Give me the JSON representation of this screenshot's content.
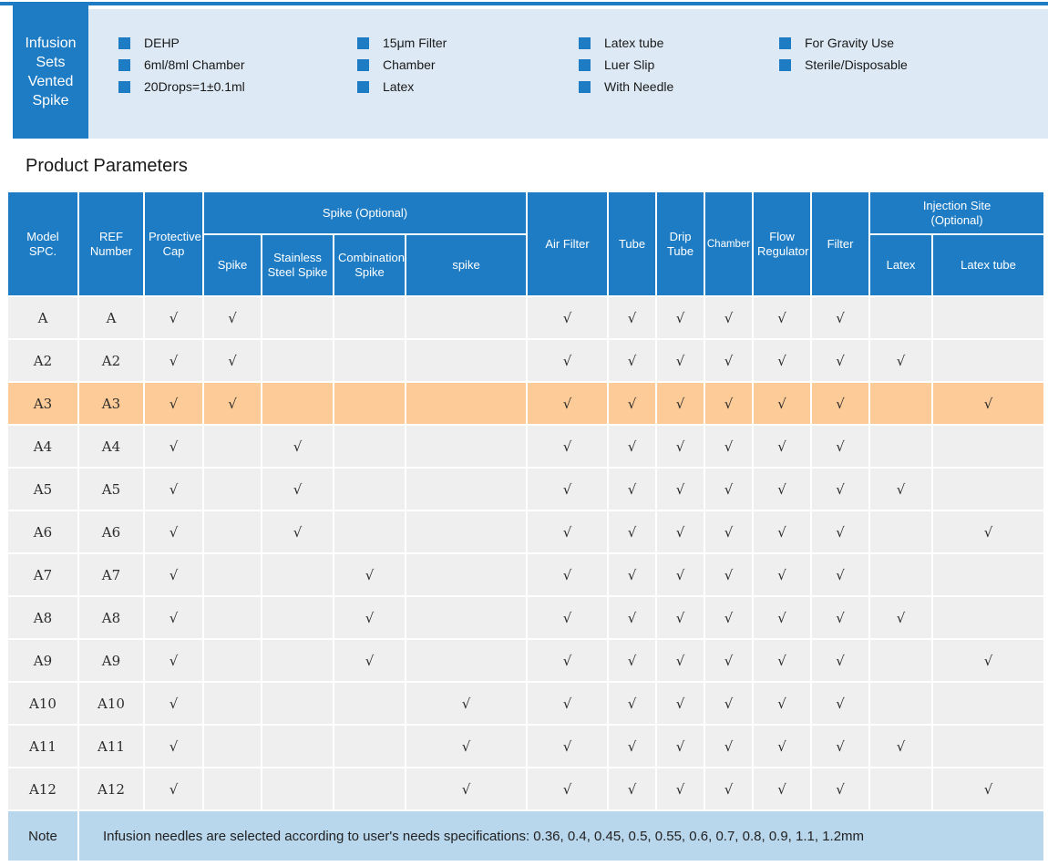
{
  "banner": {
    "title": "Infusion Sets Vented Spike",
    "feature_columns": [
      {
        "items": [
          "DEHP",
          "6ml/8ml Chamber",
          "20Drops=1±0.1ml"
        ]
      },
      {
        "items": [
          "15μm Filter",
          "Chamber",
          "Latex"
        ]
      },
      {
        "items": [
          "Latex tube",
          "Luer Slip",
          "With Needle"
        ]
      },
      {
        "items": [
          "For Gravity Use",
          "Sterile/Disposable"
        ]
      }
    ]
  },
  "section": {
    "title": "Product Parameters"
  },
  "table": {
    "group_headers": {
      "spike": "Spike（Optional）",
      "injection": "Injection Site（Optional）"
    },
    "columns": [
      "Model SPC.",
      "REF Number",
      "Protective Cap",
      "Spike",
      "Stainless Steel Spike",
      "Combination Spike",
      "spike",
      "Air Filter",
      "Tube",
      "Drip Tube",
      "Chamber",
      "Flow Regulator",
      "Filter",
      "Latex",
      "Latex tube"
    ],
    "check_glyph": "√",
    "rows": [
      {
        "model": "A",
        "ref": "A",
        "highlight": false,
        "checks": [
          1,
          1,
          0,
          0,
          0,
          1,
          1,
          1,
          1,
          1,
          1,
          0,
          0
        ]
      },
      {
        "model": "A2",
        "ref": "A2",
        "highlight": false,
        "checks": [
          1,
          1,
          0,
          0,
          0,
          1,
          1,
          1,
          1,
          1,
          1,
          1,
          0
        ]
      },
      {
        "model": "A3",
        "ref": "A3",
        "highlight": true,
        "checks": [
          1,
          1,
          0,
          0,
          0,
          1,
          1,
          1,
          1,
          1,
          1,
          0,
          1
        ]
      },
      {
        "model": "A4",
        "ref": "A4",
        "highlight": false,
        "checks": [
          1,
          0,
          1,
          0,
          0,
          1,
          1,
          1,
          1,
          1,
          1,
          0,
          0
        ]
      },
      {
        "model": "A5",
        "ref": "A5",
        "highlight": false,
        "checks": [
          1,
          0,
          1,
          0,
          0,
          1,
          1,
          1,
          1,
          1,
          1,
          1,
          0
        ]
      },
      {
        "model": "A6",
        "ref": "A6",
        "highlight": false,
        "checks": [
          1,
          0,
          1,
          0,
          0,
          1,
          1,
          1,
          1,
          1,
          1,
          0,
          1
        ]
      },
      {
        "model": "A7",
        "ref": "A7",
        "highlight": false,
        "checks": [
          1,
          0,
          0,
          1,
          0,
          1,
          1,
          1,
          1,
          1,
          1,
          0,
          0
        ]
      },
      {
        "model": "A8",
        "ref": "A8",
        "highlight": false,
        "checks": [
          1,
          0,
          0,
          1,
          0,
          1,
          1,
          1,
          1,
          1,
          1,
          1,
          0
        ]
      },
      {
        "model": "A9",
        "ref": "A9",
        "highlight": false,
        "checks": [
          1,
          0,
          0,
          1,
          0,
          1,
          1,
          1,
          1,
          1,
          1,
          0,
          1
        ]
      },
      {
        "model": "A10",
        "ref": "A10",
        "highlight": false,
        "checks": [
          1,
          0,
          0,
          0,
          1,
          1,
          1,
          1,
          1,
          1,
          1,
          0,
          0
        ]
      },
      {
        "model": "A11",
        "ref": "A11",
        "highlight": false,
        "checks": [
          1,
          0,
          0,
          0,
          1,
          1,
          1,
          1,
          1,
          1,
          1,
          1,
          0
        ]
      },
      {
        "model": "A12",
        "ref": "A12",
        "highlight": false,
        "checks": [
          1,
          0,
          0,
          0,
          1,
          1,
          1,
          1,
          1,
          1,
          1,
          0,
          1
        ]
      }
    ],
    "note_label": "Note",
    "note_text": "Infusion needles are selected according to user's needs specifications：0.36、0.4、0.45、0.5、0.55、0.6、0.7、0.8、0.9、1.1、1.2mm"
  },
  "colors": {
    "accent_blue": "#1e7cc4",
    "panel_bg": "#dde9f4",
    "row_bg": "#efefef",
    "highlight_row_bg": "#fdcb97",
    "note_bg": "#b8d6ec"
  }
}
